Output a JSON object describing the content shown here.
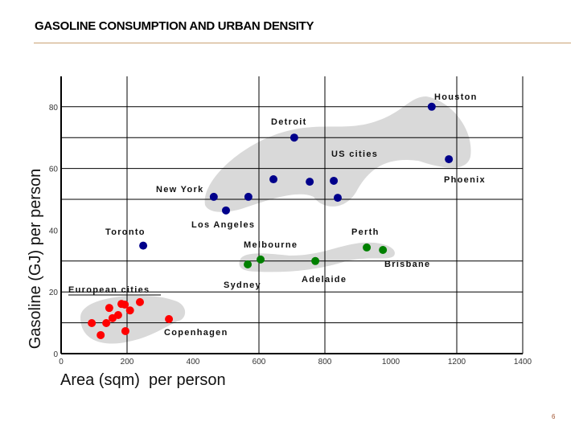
{
  "slide": {
    "title": "GASOLINE CONSUMPTION AND URBAN DENSITY",
    "page_number": "6"
  },
  "chart_data": {
    "type": "scatter",
    "title": "",
    "xlabel": "Area (sqm)  per person",
    "ylabel": "Gasoline (GJ) per person",
    "xlim": [
      0,
      1400
    ],
    "ylim": [
      0,
      90
    ],
    "xticks": [
      "0",
      "200",
      "400",
      "600",
      "800",
      "1000",
      "1200",
      "1400"
    ],
    "yticks": [
      "0",
      "20",
      "40",
      "60",
      "80"
    ],
    "grid": true,
    "colors": {
      "us": "#00008b",
      "australia": "#008000",
      "europe": "#ff0000",
      "cluster": "#d9d9d9"
    },
    "series": [
      {
        "group": "us",
        "points": [
          {
            "x": 1124,
            "y": 80,
            "label": "Houston"
          },
          {
            "x": 707,
            "y": 70,
            "label": "Detroit"
          },
          {
            "x": 1176,
            "y": 63,
            "label": "Phoenix"
          },
          {
            "x": 644,
            "y": 56.5
          },
          {
            "x": 754,
            "y": 55.7
          },
          {
            "x": 827,
            "y": 56
          },
          {
            "x": 839,
            "y": 50.5
          },
          {
            "x": 463,
            "y": 50.8,
            "label": "New York"
          },
          {
            "x": 568,
            "y": 50.8
          },
          {
            "x": 500,
            "y": 46.4,
            "label": "Los Angeles"
          },
          {
            "x": 249,
            "y": 35,
            "label": "Toronto"
          }
        ]
      },
      {
        "group": "australia",
        "points": [
          {
            "x": 566,
            "y": 28.9,
            "label": "Sydney"
          },
          {
            "x": 605,
            "y": 30.5,
            "label": "Melbourne"
          },
          {
            "x": 771,
            "y": 30,
            "label": "Adelaide"
          },
          {
            "x": 927,
            "y": 34.4,
            "label": "Perth"
          },
          {
            "x": 976,
            "y": 33.6,
            "label": "Brisbane"
          }
        ]
      },
      {
        "group": "europe",
        "points": [
          {
            "x": 93,
            "y": 9.9
          },
          {
            "x": 120,
            "y": 6
          },
          {
            "x": 137,
            "y": 9.9
          },
          {
            "x": 146,
            "y": 14.8
          },
          {
            "x": 156,
            "y": 11.5
          },
          {
            "x": 173,
            "y": 12.5
          },
          {
            "x": 183,
            "y": 16.1
          },
          {
            "x": 193,
            "y": 15.9
          },
          {
            "x": 209,
            "y": 14
          },
          {
            "x": 195,
            "y": 7.3
          },
          {
            "x": 239,
            "y": 16.7
          },
          {
            "x": 327,
            "y": 11.2,
            "label": "Copenhagen"
          }
        ]
      }
    ],
    "annotations": [
      "Houston",
      "Detroit",
      "US cities",
      "Phoenix",
      "New York",
      "Los Angeles",
      "Toronto",
      "Melbourne",
      "Perth",
      "Brisbane",
      "Sydney",
      "Adelaide",
      "European cities",
      "Copenhagen"
    ]
  }
}
